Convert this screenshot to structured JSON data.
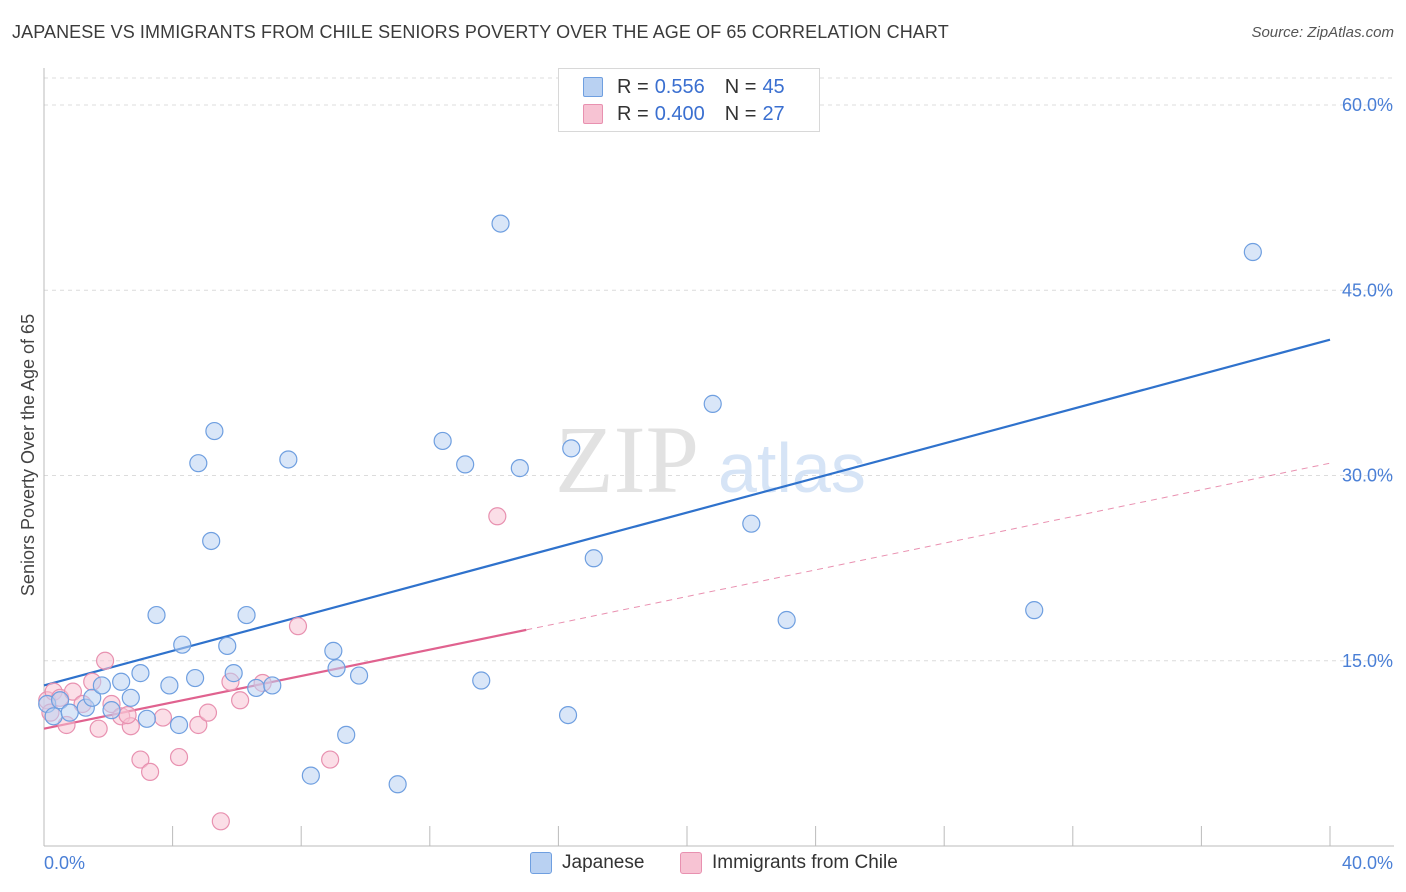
{
  "header": {
    "title": "JAPANESE VS IMMIGRANTS FROM CHILE SENIORS POVERTY OVER THE AGE OF 65 CORRELATION CHART",
    "source": "Source: ZipAtlas.com"
  },
  "watermark": {
    "zip": "ZIP",
    "atlas": "atlas"
  },
  "colors": {
    "blue_fill": "#b9d1f2",
    "blue_stroke": "#6f9fe0",
    "blue_line": "#2f72cc",
    "pink_fill": "#f7c3d3",
    "pink_stroke": "#e891b0",
    "pink_line": "#e0628f",
    "tick_text": "#4a7fd6",
    "grid": "#dcdcdc"
  },
  "legend": {
    "rows": [
      {
        "r_label": "R =",
        "r_value": "0.556",
        "n_label": "N =",
        "n_value": "45",
        "series": "blue"
      },
      {
        "r_label": "R =",
        "r_value": "0.400",
        "n_label": "N =",
        "n_value": "27",
        "series": "pink"
      }
    ]
  },
  "bottom_legend": [
    "Japanese",
    "Immigrants from Chile"
  ],
  "chart_data": {
    "type": "scatter",
    "title": "JAPANESE VS IMMIGRANTS FROM CHILE SENIORS POVERTY OVER THE AGE OF 65 CORRELATION CHART",
    "xlabel": "",
    "ylabel": "Seniors Poverty Over the Age of 65",
    "xlim": [
      0,
      40
    ],
    "ylim": [
      0,
      63
    ],
    "x_tick_labels": [
      "0.0%",
      "40.0%"
    ],
    "y_ticks": [
      15,
      30,
      45,
      60
    ],
    "y_tick_labels": [
      "15.0%",
      "30.0%",
      "45.0%",
      "60.0%"
    ],
    "grid": true,
    "series": [
      {
        "name": "Japanese",
        "color": "blue",
        "points": [
          [
            0.1,
            11.5
          ],
          [
            0.3,
            10.5
          ],
          [
            0.5,
            11.8
          ],
          [
            0.8,
            10.8
          ],
          [
            1.3,
            11.2
          ],
          [
            1.5,
            12.0
          ],
          [
            1.8,
            13.0
          ],
          [
            2.1,
            11.0
          ],
          [
            2.4,
            13.3
          ],
          [
            2.7,
            12.0
          ],
          [
            3.0,
            14.0
          ],
          [
            3.2,
            10.3
          ],
          [
            3.5,
            18.7
          ],
          [
            3.9,
            13.0
          ],
          [
            4.2,
            9.8
          ],
          [
            4.3,
            16.3
          ],
          [
            4.7,
            13.6
          ],
          [
            4.8,
            31.0
          ],
          [
            5.2,
            24.7
          ],
          [
            5.3,
            33.6
          ],
          [
            5.7,
            16.2
          ],
          [
            5.9,
            14.0
          ],
          [
            6.3,
            18.7
          ],
          [
            6.6,
            12.8
          ],
          [
            7.1,
            13.0
          ],
          [
            7.6,
            31.3
          ],
          [
            8.3,
            5.7
          ],
          [
            9.0,
            15.8
          ],
          [
            9.1,
            14.4
          ],
          [
            9.4,
            9.0
          ],
          [
            9.8,
            13.8
          ],
          [
            11.0,
            5.0
          ],
          [
            12.4,
            32.8
          ],
          [
            13.1,
            30.9
          ],
          [
            13.6,
            13.4
          ],
          [
            14.2,
            50.4
          ],
          [
            14.8,
            30.6
          ],
          [
            16.3,
            10.6
          ],
          [
            16.4,
            32.2
          ],
          [
            17.1,
            23.3
          ],
          [
            20.8,
            35.8
          ],
          [
            22.0,
            26.1
          ],
          [
            23.1,
            18.3
          ],
          [
            30.8,
            19.1
          ],
          [
            37.6,
            48.1
          ]
        ],
        "trend": {
          "x0": 0,
          "y0": 13.0,
          "x1": 40,
          "y1": 41.0,
          "style": "solid"
        }
      },
      {
        "name": "Immigrants from Chile",
        "color": "pink",
        "points": [
          [
            0.1,
            11.8
          ],
          [
            0.3,
            12.5
          ],
          [
            0.5,
            12.0
          ],
          [
            0.7,
            9.8
          ],
          [
            0.9,
            12.5
          ],
          [
            1.2,
            11.5
          ],
          [
            1.5,
            13.3
          ],
          [
            1.7,
            9.5
          ],
          [
            1.9,
            15.0
          ],
          [
            2.1,
            11.5
          ],
          [
            2.4,
            10.5
          ],
          [
            2.7,
            9.7
          ],
          [
            3.0,
            7.0
          ],
          [
            3.3,
            6.0
          ],
          [
            3.7,
            10.4
          ],
          [
            4.2,
            7.2
          ],
          [
            4.8,
            9.8
          ],
          [
            5.1,
            10.8
          ],
          [
            5.5,
            2.0
          ],
          [
            5.8,
            13.3
          ],
          [
            6.1,
            11.8
          ],
          [
            6.8,
            13.2
          ],
          [
            7.9,
            17.8
          ],
          [
            8.9,
            7.0
          ],
          [
            14.1,
            26.7
          ],
          [
            0.2,
            10.8
          ],
          [
            2.6,
            10.6
          ]
        ],
        "trend": {
          "x0": 0,
          "y0": 9.5,
          "x1": 15.0,
          "y1": 17.5,
          "style": "solid"
        },
        "trend_extension": {
          "x0": 15.0,
          "y0": 17.5,
          "x1": 40,
          "y1": 31.0,
          "style": "dashed"
        }
      }
    ]
  }
}
